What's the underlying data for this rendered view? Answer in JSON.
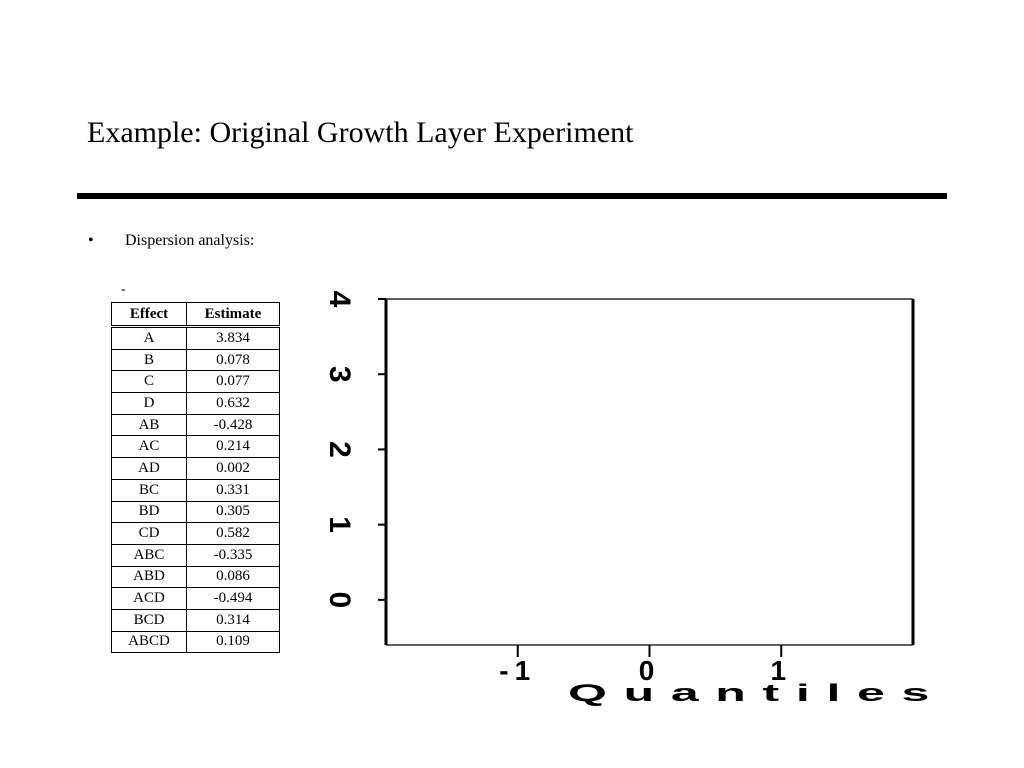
{
  "slide": {
    "title": "Example: Original Growth Layer Experiment",
    "bullet_marker": "•",
    "bullet_text": "Dispersion analysis:",
    "dash_mark": "-"
  },
  "table": {
    "headers": [
      "Effect",
      "Estimate"
    ],
    "rows": [
      [
        "A",
        "3.834"
      ],
      [
        "B",
        "0.078"
      ],
      [
        "C",
        "0.077"
      ],
      [
        "D",
        "0.632"
      ],
      [
        "AB",
        "-0.428"
      ],
      [
        "AC",
        "0.214"
      ],
      [
        "AD",
        "0.002"
      ],
      [
        "BC",
        "0.331"
      ],
      [
        "BD",
        "0.305"
      ],
      [
        "CD",
        "0.582"
      ],
      [
        "ABC",
        "-0.335"
      ],
      [
        "ABD",
        "0.086"
      ],
      [
        "ACD",
        "-0.494"
      ],
      [
        "BCD",
        "0.314"
      ],
      [
        "ABCD",
        "0.109"
      ]
    ]
  },
  "chart_data": {
    "type": "scatter",
    "title": "",
    "xlabel": "Quantiles",
    "ylabel": "",
    "x_ticks": [
      "-1",
      "0",
      "1"
    ],
    "y_ticks": [
      "0",
      "1",
      "2",
      "3",
      "4"
    ],
    "xlim": [
      -2,
      2
    ],
    "ylim": [
      -0.6,
      4
    ],
    "points": [],
    "frame_color": "#000000"
  }
}
